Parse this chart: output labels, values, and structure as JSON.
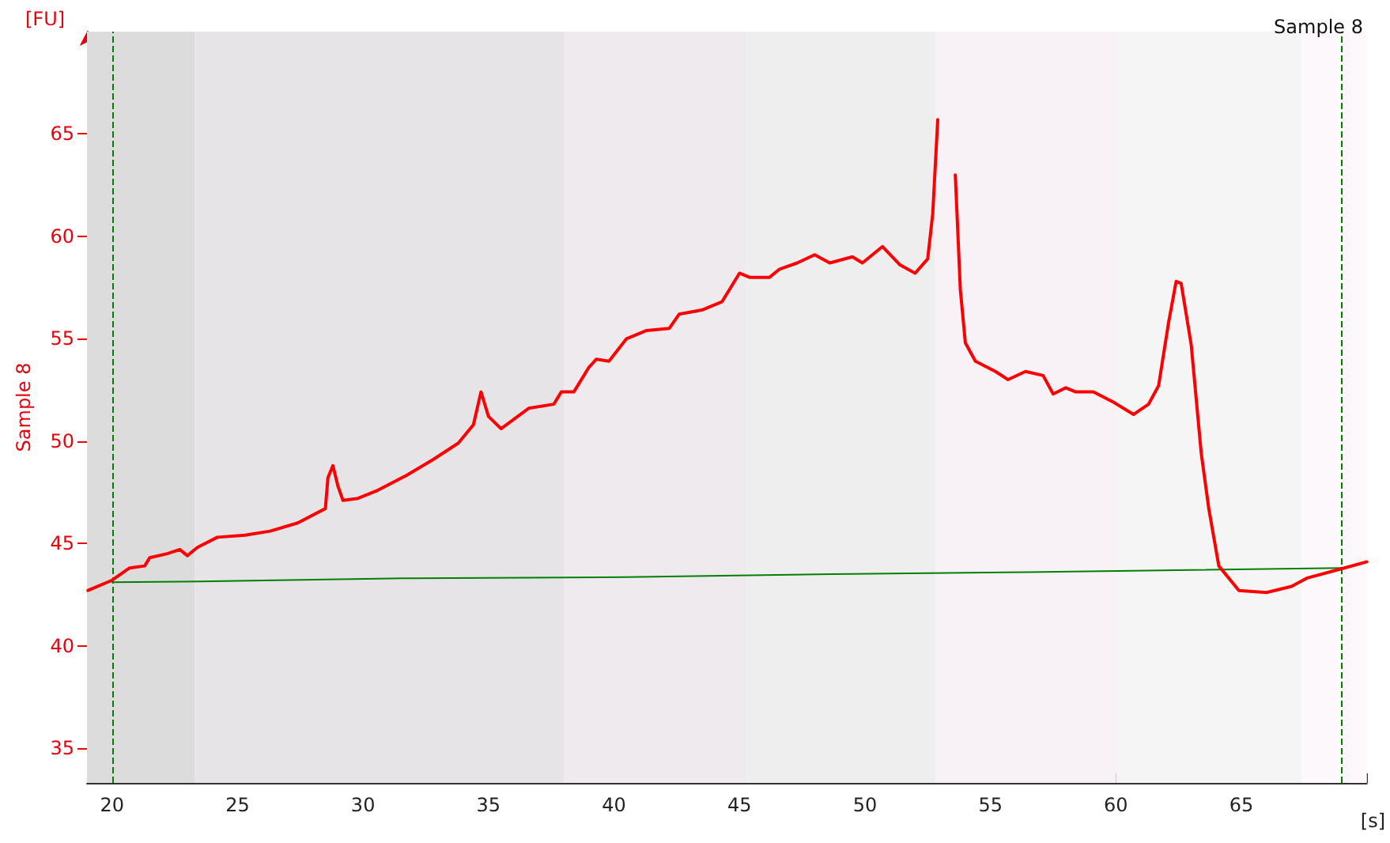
{
  "chart_data": {
    "type": "line",
    "title": "Sample 8",
    "xlabel": "[s]",
    "ylabel": "Sample 8",
    "annotations": [
      "[FU]"
    ],
    "series": [
      {
        "color": "#ff0000",
        "x": [
          19.04,
          20,
          20.7,
          21.3,
          21.5,
          22.2,
          22.7,
          23.0,
          23.4,
          24.2,
          25.3,
          26.3,
          27.4,
          28.5,
          28.6,
          28.8,
          29.0,
          29.2,
          29.8,
          30.6,
          31.7,
          32.8,
          33.8,
          34.4,
          34.7,
          35.0,
          35.5,
          36.6,
          37.6,
          37.9,
          38.4,
          39.0,
          39.3,
          39.8,
          40.5,
          41.3,
          42.2,
          42.6,
          43.5,
          44.3,
          45.0,
          45.4,
          46.2,
          46.6,
          47.3,
          48.0,
          48.6,
          49.5,
          49.9,
          50.7,
          51.4,
          52.0,
          52.5,
          52.7,
          52.9,
          53.0,
          53.3,
          53.6,
          53.8,
          54.0,
          54.4,
          55.2,
          55.7,
          56.4,
          57.1,
          57.5,
          58.0,
          58.4,
          59.1,
          59.9,
          60.7,
          61.3,
          61.7,
          62.1,
          62.4,
          62.6,
          63.0,
          63.4,
          63.7,
          64.1,
          64.9,
          66.0,
          67.0,
          67.6,
          69.1,
          70.0
        ],
        "values": [
          42.7,
          43.2,
          43.8,
          43.9,
          44.3,
          44.5,
          44.7,
          44.4,
          44.8,
          45.3,
          45.4,
          45.6,
          46.0,
          46.7,
          48.2,
          48.8,
          47.8,
          47.1,
          47.2,
          47.6,
          48.3,
          49.1,
          49.9,
          50.8,
          52.4,
          51.2,
          50.6,
          51.6,
          51.8,
          52.4,
          52.4,
          53.6,
          54.0,
          53.9,
          55.0,
          55.4,
          55.5,
          56.2,
          56.4,
          56.8,
          58.2,
          58.0,
          58.0,
          58.4,
          58.7,
          59.1,
          58.7,
          59.0,
          58.7,
          59.5,
          58.6,
          58.2,
          58.9,
          61.1,
          65.7,
          null,
          null,
          63.0,
          57.4,
          54.8,
          53.9,
          53.4,
          53.0,
          53.4,
          53.2,
          52.3,
          52.6,
          52.4,
          52.4,
          51.9,
          51.3,
          51.8,
          52.7,
          55.8,
          57.8,
          57.7,
          54.7,
          49.4,
          46.7,
          43.9,
          42.7,
          42.6,
          42.9,
          43.3,
          43.8,
          44.1
        ]
      },
      {
        "color": "#008000",
        "x": [
          20,
          24,
          32,
          40.5,
          48.7,
          56.5,
          69
        ],
        "values": [
          43.1,
          43.15,
          43.3,
          43.35,
          43.5,
          43.6,
          43.8
        ]
      }
    ],
    "xlim": [
      19,
      70
    ],
    "xticks": [
      20,
      25,
      30,
      35,
      40,
      45,
      50,
      55,
      60,
      65,
      {
        "value": 70,
        "label": null
      }
    ],
    "ylim": [
      33.3,
      70
    ],
    "yticks": [
      35,
      40,
      45,
      50,
      55,
      60,
      65
    ],
    "ref_lines": [
      {
        "axis": "x",
        "value": 20,
        "color": "#008000",
        "line_style": "dashed"
      },
      {
        "axis": "x",
        "value": 69,
        "color": "#008000",
        "line_style": "dashed"
      }
    ],
    "bands": [
      {
        "axis": "x",
        "from": 19,
        "to": 23.3,
        "color": "#dcdcdc"
      },
      {
        "axis": "x",
        "from": 23.3,
        "to": 38,
        "color": "#e6e4e6"
      },
      {
        "axis": "x",
        "from": 38,
        "to": 45.3,
        "color": "#eeeaee"
      },
      {
        "axis": "x",
        "from": 45.3,
        "to": 52.8,
        "color": "#efeeef"
      },
      {
        "axis": "x",
        "from": 52.8,
        "to": 60,
        "color": "#f8f2f6"
      },
      {
        "axis": "x",
        "from": 60,
        "to": 67.4,
        "color": "#f5f5f5"
      },
      {
        "axis": "x",
        "from": 67.4,
        "to": 70,
        "color": "#fdf8fc"
      }
    ],
    "grid": false,
    "marker": "none",
    "line_style": "solid"
  }
}
